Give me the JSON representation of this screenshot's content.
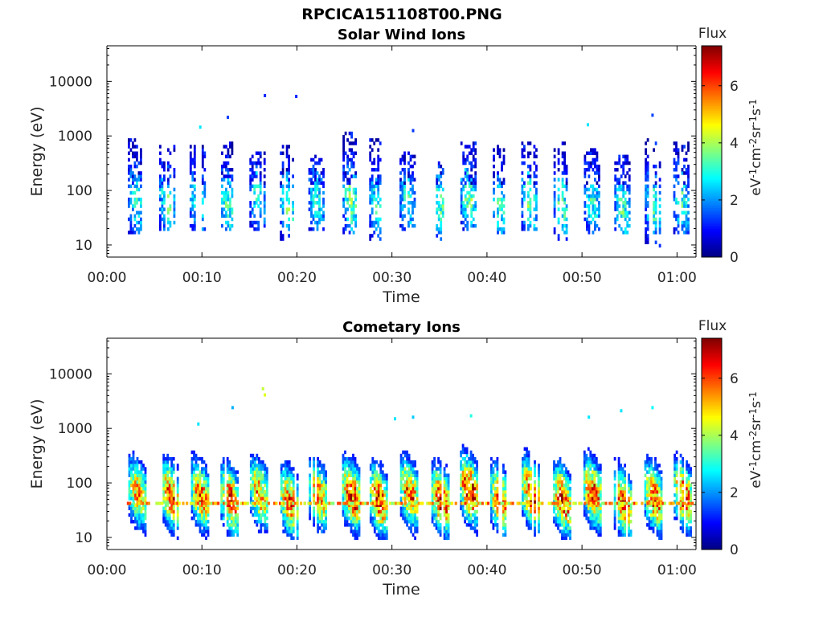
{
  "figure": {
    "title": "RPCICA151108T00.PNG"
  },
  "colorbar": {
    "label": "Flux",
    "unit_base": [
      "eV",
      "cm",
      "sr",
      "s"
    ],
    "unit_exps": [
      "-1",
      "-2",
      "-1",
      "-1"
    ],
    "ticks": [
      0,
      2,
      4,
      6
    ],
    "range": [
      0,
      7.4
    ],
    "colormap": "jet"
  },
  "chart_data": [
    {
      "type": "heatmap",
      "title": "Solar Wind Ions",
      "xlabel": "Time",
      "ylabel": "Energy (eV)",
      "x_ticks": [
        "00:00",
        "00:10",
        "00:20",
        "00:30",
        "00:40",
        "00:50",
        "01:00"
      ],
      "y_ticks": [
        "10",
        "100",
        "1000",
        "10000"
      ],
      "y_scale": "log",
      "ylim_eV": [
        6,
        45000
      ],
      "xlim_minutes": [
        0,
        62
      ],
      "z_range": [
        0,
        7.4
      ],
      "bursts": [
        {
          "t": 3.0,
          "elo": 14,
          "ehi": 900,
          "peak": 3.1,
          "epk": 60
        },
        {
          "t": 6.3,
          "elo": 18,
          "ehi": 650,
          "peak": 3.4,
          "epk": 60
        },
        {
          "t": 9.5,
          "elo": 16,
          "ehi": 600,
          "peak": 3.1,
          "epk": 60
        },
        {
          "t": 12.6,
          "elo": 16,
          "ehi": 700,
          "peak": 3.3,
          "epk": 50
        },
        {
          "t": 15.8,
          "elo": 18,
          "ehi": 500,
          "peak": 3.0,
          "epk": 70
        },
        {
          "t": 19.0,
          "elo": 12,
          "ehi": 600,
          "peak": 3.4,
          "epk": 50
        },
        {
          "t": 22.0,
          "elo": 18,
          "ehi": 400,
          "peak": 3.0,
          "epk": 60
        },
        {
          "t": 25.6,
          "elo": 14,
          "ehi": 1100,
          "peak": 3.6,
          "epk": 60
        },
        {
          "t": 28.4,
          "elo": 12,
          "ehi": 900,
          "peak": 3.2,
          "epk": 50
        },
        {
          "t": 31.6,
          "elo": 16,
          "ehi": 500,
          "peak": 3.1,
          "epk": 60
        },
        {
          "t": 35.0,
          "elo": 12,
          "ehi": 300,
          "peak": 3.4,
          "epk": 50
        },
        {
          "t": 38.0,
          "elo": 16,
          "ehi": 700,
          "peak": 3.7,
          "epk": 70
        },
        {
          "t": 41.2,
          "elo": 14,
          "ehi": 900,
          "peak": 3.3,
          "epk": 50
        },
        {
          "t": 44.4,
          "elo": 16,
          "ehi": 700,
          "peak": 3.6,
          "epk": 60
        },
        {
          "t": 47.8,
          "elo": 12,
          "ehi": 700,
          "peak": 3.4,
          "epk": 50
        },
        {
          "t": 51.0,
          "elo": 14,
          "ehi": 600,
          "peak": 3.1,
          "epk": 60
        },
        {
          "t": 54.2,
          "elo": 14,
          "ehi": 450,
          "peak": 3.4,
          "epk": 40
        },
        {
          "t": 57.4,
          "elo": 8,
          "ehi": 900,
          "peak": 3.3,
          "epk": 50
        },
        {
          "t": 60.4,
          "elo": 14,
          "ehi": 700,
          "peak": 3.3,
          "epk": 60
        }
      ],
      "sparse_points": [
        {
          "t": 16.5,
          "e": 5500,
          "v": 1.2
        },
        {
          "t": 19.8,
          "e": 5300,
          "v": 1.2
        },
        {
          "t": 12.6,
          "e": 2200,
          "v": 1.4
        },
        {
          "t": 9.7,
          "e": 1450,
          "v": 2.6
        },
        {
          "t": 57.3,
          "e": 2400,
          "v": 1.4
        },
        {
          "t": 50.5,
          "e": 1600,
          "v": 2.6
        },
        {
          "t": 32.1,
          "e": 1250,
          "v": 1.3
        }
      ]
    },
    {
      "type": "heatmap",
      "title": "Cometary Ions",
      "xlabel": "Time",
      "ylabel": "Energy (eV)",
      "x_ticks": [
        "00:00",
        "00:10",
        "00:20",
        "00:30",
        "00:40",
        "00:50",
        "01:00"
      ],
      "y_ticks": [
        "10",
        "100",
        "1000",
        "10000"
      ],
      "y_scale": "log",
      "ylim_eV": [
        6,
        45000
      ],
      "xlim_minutes": [
        0,
        62
      ],
      "z_range": [
        0,
        7.4
      ],
      "bursts": [
        {
          "t": 3.2,
          "elo": 10,
          "ehi": 900,
          "peak": 5.6,
          "epk": 60
        },
        {
          "t": 6.6,
          "elo": 8,
          "ehi": 600,
          "peak": 6.4,
          "epk": 55
        },
        {
          "t": 9.8,
          "elo": 8,
          "ehi": 650,
          "peak": 6.0,
          "epk": 55
        },
        {
          "t": 12.9,
          "elo": 10,
          "ehi": 900,
          "peak": 6.5,
          "epk": 45
        },
        {
          "t": 16.0,
          "elo": 12,
          "ehi": 600,
          "peak": 5.8,
          "epk": 60
        },
        {
          "t": 19.2,
          "elo": 8,
          "ehi": 650,
          "peak": 6.2,
          "epk": 40
        },
        {
          "t": 22.2,
          "elo": 12,
          "ehi": 450,
          "peak": 5.8,
          "epk": 55
        },
        {
          "t": 25.7,
          "elo": 8,
          "ehi": 1300,
          "peak": 6.8,
          "epk": 55
        },
        {
          "t": 28.6,
          "elo": 8,
          "ehi": 900,
          "peak": 6.5,
          "epk": 45
        },
        {
          "t": 31.8,
          "elo": 8,
          "ehi": 600,
          "peak": 6.2,
          "epk": 60
        },
        {
          "t": 35.1,
          "elo": 8,
          "ehi": 450,
          "peak": 6.6,
          "epk": 45
        },
        {
          "t": 38.1,
          "elo": 10,
          "ehi": 700,
          "peak": 7.0,
          "epk": 70
        },
        {
          "t": 41.3,
          "elo": 10,
          "ehi": 900,
          "peak": 6.1,
          "epk": 45
        },
        {
          "t": 44.6,
          "elo": 10,
          "ehi": 800,
          "peak": 6.8,
          "epk": 60
        },
        {
          "t": 47.9,
          "elo": 8,
          "ehi": 800,
          "peak": 6.6,
          "epk": 45
        },
        {
          "t": 51.1,
          "elo": 10,
          "ehi": 900,
          "peak": 6.4,
          "epk": 60
        },
        {
          "t": 54.3,
          "elo": 10,
          "ehi": 650,
          "peak": 6.4,
          "epk": 40
        },
        {
          "t": 57.5,
          "elo": 8,
          "ehi": 900,
          "peak": 6.5,
          "epk": 50
        },
        {
          "t": 60.6,
          "elo": 10,
          "ehi": 700,
          "peak": 6.4,
          "epk": 55
        }
      ],
      "sparse_points": [
        {
          "t": 16.3,
          "e": 5300,
          "v": 4.2
        },
        {
          "t": 16.5,
          "e": 4100,
          "v": 4.4
        },
        {
          "t": 13.1,
          "e": 2400,
          "v": 2.2
        },
        {
          "t": 30.2,
          "e": 1500,
          "v": 2.6
        },
        {
          "t": 32.1,
          "e": 1600,
          "v": 2.4
        },
        {
          "t": 38.2,
          "e": 1700,
          "v": 3.0
        },
        {
          "t": 50.6,
          "e": 1600,
          "v": 2.6
        },
        {
          "t": 54.0,
          "e": 2100,
          "v": 2.6
        },
        {
          "t": 57.3,
          "e": 2400,
          "v": 2.8
        },
        {
          "t": 9.5,
          "e": 1200,
          "v": 2.6
        }
      ],
      "band": {
        "e": 42,
        "v": 5.2
      }
    }
  ]
}
